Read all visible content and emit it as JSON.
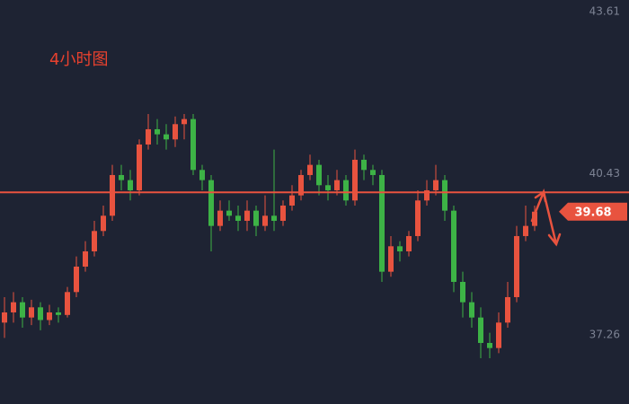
{
  "chart_data": {
    "type": "candlestick",
    "title": "4小时图",
    "open": [
      37.5,
      37.7,
      37.9,
      37.6,
      37.8,
      37.55,
      37.7,
      37.65,
      38.1,
      38.6,
      38.9,
      39.3,
      39.6,
      40.4,
      40.3,
      40.1,
      41.0,
      41.3,
      41.2,
      41.1,
      41.4,
      41.5,
      40.5,
      40.3,
      39.4,
      39.7,
      39.6,
      39.5,
      39.7,
      39.4,
      39.6,
      39.5,
      39.8,
      40.0,
      40.4,
      40.6,
      40.2,
      40.1,
      40.3,
      39.9,
      40.7,
      40.5,
      40.4,
      38.5,
      39.0,
      38.9,
      39.2,
      39.9,
      40.1,
      40.3,
      39.7,
      38.3,
      37.9,
      37.6,
      37.1,
      37.0,
      37.5,
      38.0,
      39.2,
      39.4
    ],
    "high": [
      38.0,
      38.1,
      38.0,
      37.95,
      37.9,
      37.85,
      37.8,
      38.2,
      38.8,
      39.1,
      39.5,
      39.8,
      40.6,
      40.6,
      40.5,
      41.1,
      41.6,
      41.5,
      41.4,
      41.55,
      41.6,
      41.6,
      40.6,
      40.4,
      39.9,
      39.9,
      39.8,
      39.9,
      39.8,
      40.0,
      40.9,
      39.9,
      40.2,
      40.5,
      40.8,
      40.7,
      40.4,
      40.5,
      40.4,
      40.9,
      40.8,
      40.6,
      40.5,
      39.2,
      39.1,
      39.3,
      40.1,
      40.3,
      40.6,
      40.4,
      39.8,
      38.5,
      38.1,
      37.8,
      37.3,
      37.7,
      38.3,
      39.4,
      39.8,
      39.8
    ],
    "low": [
      37.2,
      37.5,
      37.4,
      37.45,
      37.35,
      37.45,
      37.5,
      37.6,
      38.0,
      38.5,
      38.8,
      39.2,
      39.5,
      40.1,
      39.9,
      40.0,
      40.9,
      41.0,
      40.9,
      40.95,
      41.1,
      40.4,
      40.1,
      38.9,
      39.3,
      39.5,
      39.3,
      39.3,
      39.2,
      39.3,
      39.3,
      39.4,
      39.7,
      39.9,
      40.3,
      40.0,
      39.9,
      40.0,
      39.8,
      39.8,
      40.3,
      40.2,
      38.3,
      38.4,
      38.7,
      38.8,
      39.1,
      39.8,
      40.0,
      39.5,
      38.1,
      37.6,
      37.4,
      36.8,
      36.8,
      36.9,
      37.4,
      37.9,
      39.1,
      39.3
    ],
    "close": [
      37.7,
      37.9,
      37.6,
      37.8,
      37.55,
      37.7,
      37.65,
      38.1,
      38.6,
      38.9,
      39.3,
      39.6,
      40.4,
      40.3,
      40.1,
      41.0,
      41.3,
      41.2,
      41.1,
      41.4,
      41.5,
      40.5,
      40.3,
      39.4,
      39.7,
      39.6,
      39.5,
      39.7,
      39.4,
      39.6,
      39.5,
      39.8,
      40.0,
      40.4,
      40.6,
      40.2,
      40.1,
      40.3,
      39.9,
      40.7,
      40.5,
      40.4,
      38.5,
      39.0,
      38.9,
      39.2,
      39.9,
      40.1,
      40.3,
      39.7,
      38.3,
      37.9,
      37.6,
      37.1,
      37.0,
      37.5,
      38.0,
      39.2,
      39.4,
      39.68
    ],
    "up_color": "#e8533f",
    "down_color": "#3db346",
    "ylim": [
      35.9,
      43.84
    ],
    "yticks": [
      37.26,
      40.43,
      43.61
    ],
    "level_line": 40.06,
    "level_color": "#e8533f",
    "last_price": 39.68
  }
}
